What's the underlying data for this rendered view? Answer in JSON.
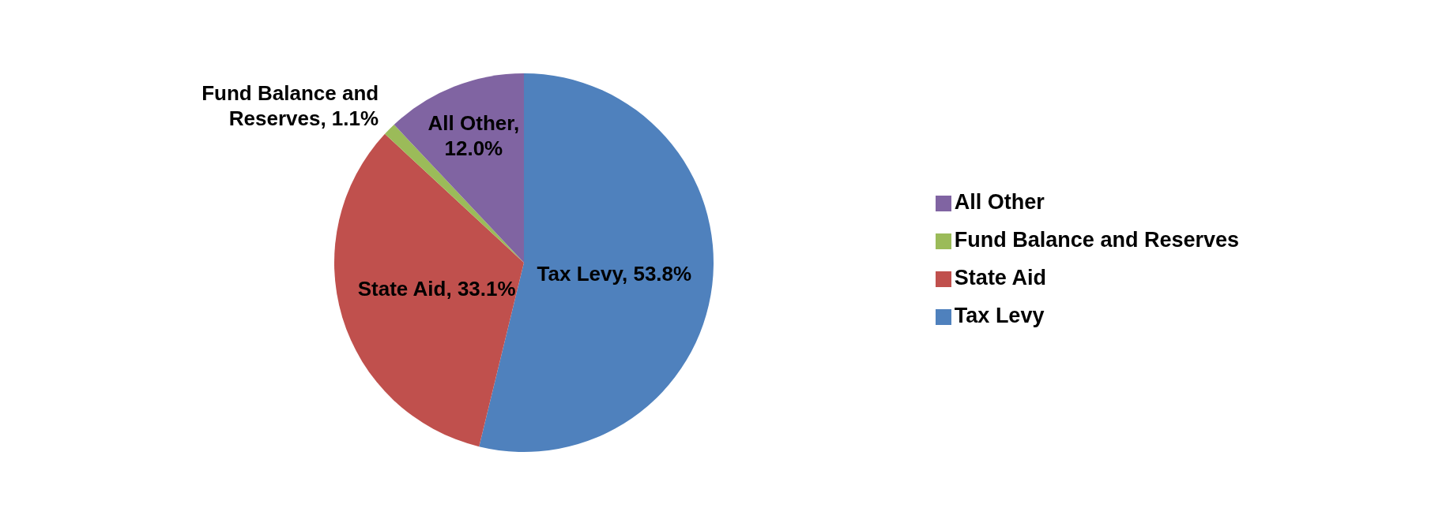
{
  "chart_data": {
    "type": "pie",
    "categories": [
      "Tax Levy",
      "State Aid",
      "Fund Balance and Reserves",
      "All Other"
    ],
    "values": [
      53.8,
      33.1,
      1.1,
      12.0
    ],
    "colors": [
      "#4f81bd",
      "#c0504d",
      "#9bbb59",
      "#8064a2"
    ],
    "value_labels": [
      "Tax Levy, 53.8%",
      "State Aid, 33.1%",
      "Fund Balance and Reserves, 1.1%",
      "All Other, 12.0%"
    ],
    "legend": "right"
  }
}
